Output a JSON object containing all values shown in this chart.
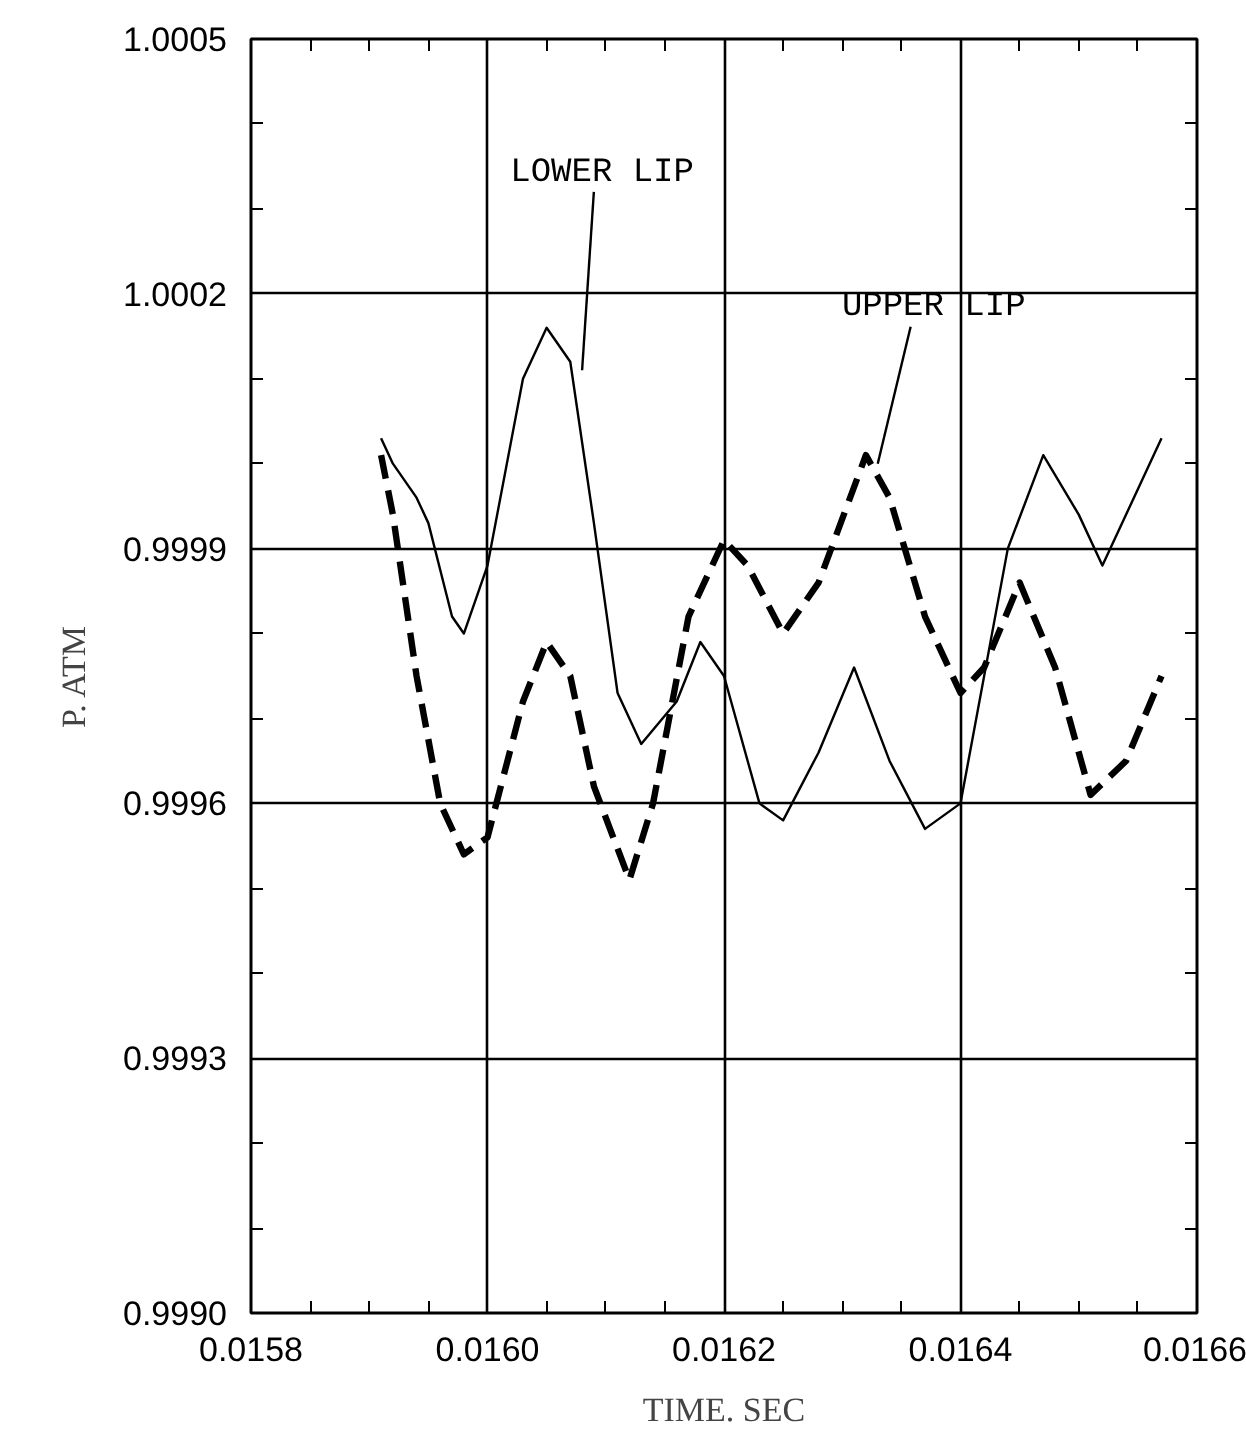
{
  "chart_data": {
    "type": "line",
    "xlabel": "TIME. SEC",
    "ylabel": "P. ATM",
    "xlim": [
      0.0158,
      0.0166
    ],
    "xticks": [
      {
        "value": 0.0158,
        "label": "0.0158"
      },
      {
        "value": 0.016,
        "label": "0.0160"
      },
      {
        "value": 0.0162,
        "label": "0.0162"
      },
      {
        "value": 0.0164,
        "label": "0.0164"
      },
      {
        "value": 0.0166,
        "label": "0.0166"
      }
    ],
    "ylim": [
      0.999,
      1.0005
    ],
    "yticks": [
      {
        "value": 0.999,
        "label": "0.9990"
      },
      0.9993,
      0.9996,
      0.9999,
      1.0002,
      1.0005
    ],
    "grid": true,
    "marker": "none",
    "series": [
      {
        "color": "#000000",
        "line_style": "solid",
        "x": [
          0.01591,
          0.01592,
          0.01594,
          0.01595,
          0.01597,
          0.01598,
          0.016,
          0.01603,
          0.01605,
          0.01607,
          0.01609,
          0.01611,
          0.01613,
          0.01616,
          0.01618,
          0.0162,
          0.01623,
          0.01625,
          0.01628,
          0.01631,
          0.01634,
          0.01637,
          0.0164,
          0.01644,
          0.01647,
          0.0165,
          0.01652,
          0.01657
        ],
        "values": [
          1.00003,
          1.0,
          0.99996,
          0.99993,
          0.99982,
          0.9998,
          0.99988,
          1.0001,
          1.00016,
          1.00012,
          0.99993,
          0.99973,
          0.99967,
          0.99972,
          0.99979,
          0.99975,
          0.9996,
          0.99958,
          0.99966,
          0.99976,
          0.99965,
          0.99957,
          0.9996,
          0.9999,
          1.00001,
          0.99994,
          0.99988,
          1.00003
        ]
      },
      {
        "color": "#000000",
        "line_style": "dashed",
        "x": [
          0.01591,
          0.01592,
          0.01594,
          0.01596,
          0.01598,
          0.016,
          0.01603,
          0.01605,
          0.01607,
          0.01609,
          0.01612,
          0.01614,
          0.01617,
          0.0162,
          0.01622,
          0.01625,
          0.01628,
          0.01632,
          0.01634,
          0.01637,
          0.0164,
          0.01642,
          0.01645,
          0.01648,
          0.01651,
          0.01654,
          0.01657
        ],
        "values": [
          1.00001,
          0.99994,
          0.99975,
          0.9996,
          0.99954,
          0.99956,
          0.99972,
          0.99979,
          0.99975,
          0.99962,
          0.99951,
          0.9996,
          0.99982,
          0.99991,
          0.99988,
          0.9998,
          0.99986,
          1.00001,
          0.99996,
          0.99982,
          0.99973,
          0.99976,
          0.99986,
          0.99976,
          0.99961,
          0.99965,
          0.99975
        ]
      }
    ],
    "annotations": [
      {
        "text": "LOWER LIP",
        "x": 0.01608,
        "y": 1.00011
      },
      {
        "text": "UPPER LIP",
        "x": 0.01633,
        "y": 1.0
      }
    ]
  }
}
